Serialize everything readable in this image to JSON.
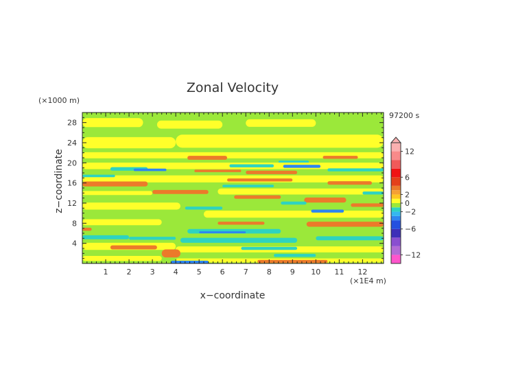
{
  "chart_data": {
    "type": "heatmap",
    "title": "Zonal Velocity",
    "xlabel": "x−coordinate",
    "ylabel": "z−coordinate",
    "x_unit": "(×1E4 m)",
    "y_unit": "(×1000 m)",
    "time_label": "97200 s",
    "xlim": [
      0,
      12.9
    ],
    "ylim": [
      0,
      30
    ],
    "x_ticks": [
      1,
      2,
      3,
      4,
      5,
      6,
      7,
      8,
      9,
      10,
      11,
      12
    ],
    "y_ticks": [
      4,
      8,
      12,
      16,
      20,
      24,
      28
    ],
    "colorbar": {
      "labels": [
        "12",
        "6",
        "2",
        "0",
        "−2",
        "−6",
        "−12"
      ],
      "levels": [
        {
          "from": -14,
          "to": -12,
          "color": "#ff55cc"
        },
        {
          "from": -12,
          "to": -10,
          "color": "#b36bd6"
        },
        {
          "from": -10,
          "to": -8,
          "color": "#8a4fd0"
        },
        {
          "from": -8,
          "to": -6,
          "color": "#3d2fb8"
        },
        {
          "from": -6,
          "to": -4,
          "color": "#2450e0"
        },
        {
          "from": -4,
          "to": -3,
          "color": "#2d86f0"
        },
        {
          "from": -3,
          "to": -2,
          "color": "#34b7f0"
        },
        {
          "from": -2,
          "to": -1,
          "color": "#2ed3c0"
        },
        {
          "from": -1,
          "to": 0,
          "color": "#9be83a"
        },
        {
          "from": 0,
          "to": 1,
          "color": "#ffff2a"
        },
        {
          "from": 1,
          "to": 2,
          "color": "#ffc520"
        },
        {
          "from": 2,
          "to": 3,
          "color": "#f5a033"
        },
        {
          "from": 3,
          "to": 4,
          "color": "#ec7a2a"
        },
        {
          "from": 4,
          "to": 6,
          "color": "#e4401a"
        },
        {
          "from": 6,
          "to": 8,
          "color": "#f01414"
        },
        {
          "from": 8,
          "to": 10,
          "color": "#f05a5a"
        },
        {
          "from": 10,
          "to": 12,
          "color": "#f88a8a"
        },
        {
          "from": 12,
          "to": 14,
          "color": "#fbb0b0"
        }
      ]
    },
    "background_color": "#9be83a",
    "features": [
      {
        "x0": 0.0,
        "x1": 2.6,
        "z": 28.0,
        "h": 1.8,
        "color": "#ffff2a"
      },
      {
        "x0": 3.2,
        "x1": 6.0,
        "z": 27.6,
        "h": 1.6,
        "color": "#ffff2a"
      },
      {
        "x0": 7.0,
        "x1": 10.0,
        "z": 27.9,
        "h": 1.5,
        "color": "#ffff2a"
      },
      {
        "x0": 0.0,
        "x1": 4.0,
        "z": 24.0,
        "h": 2.2,
        "color": "#ffff2a"
      },
      {
        "x0": 4.0,
        "x1": 12.9,
        "z": 24.3,
        "h": 2.6,
        "color": "#ffff2a"
      },
      {
        "x0": 0.0,
        "x1": 12.9,
        "z": 21.5,
        "h": 1.2,
        "color": "#ffff2a"
      },
      {
        "x0": 4.5,
        "x1": 6.2,
        "z": 21.0,
        "h": 0.8,
        "color": "#ec7a2a"
      },
      {
        "x0": 10.3,
        "x1": 11.8,
        "z": 21.1,
        "h": 0.6,
        "color": "#ec7a2a"
      },
      {
        "x0": 8.4,
        "x1": 9.7,
        "z": 20.2,
        "h": 0.5,
        "color": "#2ed3c0"
      },
      {
        "x0": 0.0,
        "x1": 12.9,
        "z": 19.4,
        "h": 1.3,
        "color": "#ffff2a"
      },
      {
        "x0": 1.2,
        "x1": 2.8,
        "z": 18.8,
        "h": 0.7,
        "color": "#2ed3c0"
      },
      {
        "x0": 2.2,
        "x1": 3.6,
        "z": 18.6,
        "h": 0.5,
        "color": "#2d86f0"
      },
      {
        "x0": 6.3,
        "x1": 8.2,
        "z": 19.4,
        "h": 0.6,
        "color": "#2ed3c0"
      },
      {
        "x0": 8.6,
        "x1": 10.2,
        "z": 19.3,
        "h": 0.6,
        "color": "#2d86f0"
      },
      {
        "x0": 4.8,
        "x1": 6.8,
        "z": 18.4,
        "h": 0.5,
        "color": "#ec7a2a"
      },
      {
        "x0": 7.0,
        "x1": 9.2,
        "z": 18.1,
        "h": 0.7,
        "color": "#ec7a2a"
      },
      {
        "x0": 10.5,
        "x1": 12.9,
        "z": 18.6,
        "h": 0.6,
        "color": "#2ed3c0"
      },
      {
        "x0": 0.0,
        "x1": 12.9,
        "z": 16.8,
        "h": 1.4,
        "color": "#ffff2a"
      },
      {
        "x0": 0.0,
        "x1": 1.4,
        "z": 17.4,
        "h": 0.5,
        "color": "#2ed3c0"
      },
      {
        "x0": 0.0,
        "x1": 2.8,
        "z": 15.8,
        "h": 1.0,
        "color": "#ec7a2a"
      },
      {
        "x0": 6.2,
        "x1": 9.0,
        "z": 16.6,
        "h": 0.6,
        "color": "#ec7a2a"
      },
      {
        "x0": 10.5,
        "x1": 12.4,
        "z": 16.0,
        "h": 0.7,
        "color": "#ec7a2a"
      },
      {
        "x0": 6.0,
        "x1": 8.2,
        "z": 15.4,
        "h": 0.5,
        "color": "#2ed3c0"
      },
      {
        "x0": 3.0,
        "x1": 5.4,
        "z": 14.2,
        "h": 0.8,
        "color": "#ec7a2a"
      },
      {
        "x0": 0.0,
        "x1": 3.0,
        "z": 14.0,
        "h": 0.8,
        "color": "#ffff2a"
      },
      {
        "x0": 5.8,
        "x1": 12.9,
        "z": 14.3,
        "h": 1.2,
        "color": "#ffff2a"
      },
      {
        "x0": 12.0,
        "x1": 12.9,
        "z": 14.0,
        "h": 0.6,
        "color": "#2ed3c0"
      },
      {
        "x0": 6.5,
        "x1": 8.5,
        "z": 13.2,
        "h": 0.7,
        "color": "#ec7a2a"
      },
      {
        "x0": 9.5,
        "x1": 11.3,
        "z": 12.6,
        "h": 1.0,
        "color": "#ec7a2a"
      },
      {
        "x0": 8.5,
        "x1": 9.6,
        "z": 12.0,
        "h": 0.6,
        "color": "#2ed3c0"
      },
      {
        "x0": 0.0,
        "x1": 4.2,
        "z": 11.4,
        "h": 1.4,
        "color": "#ffff2a"
      },
      {
        "x0": 4.4,
        "x1": 6.0,
        "z": 11.0,
        "h": 0.6,
        "color": "#2ed3c0"
      },
      {
        "x0": 5.2,
        "x1": 12.9,
        "z": 9.8,
        "h": 1.4,
        "color": "#ffff2a"
      },
      {
        "x0": 9.8,
        "x1": 11.2,
        "z": 10.4,
        "h": 0.6,
        "color": "#2d86f0"
      },
      {
        "x0": 11.5,
        "x1": 12.9,
        "z": 11.6,
        "h": 0.7,
        "color": "#ec7a2a"
      },
      {
        "x0": 0.0,
        "x1": 3.4,
        "z": 8.2,
        "h": 1.2,
        "color": "#ffff2a"
      },
      {
        "x0": 5.8,
        "x1": 7.8,
        "z": 8.0,
        "h": 0.6,
        "color": "#ec7a2a"
      },
      {
        "x0": 9.6,
        "x1": 12.9,
        "z": 7.8,
        "h": 1.0,
        "color": "#ec7a2a"
      },
      {
        "x0": 0.0,
        "x1": 0.4,
        "z": 6.8,
        "h": 0.6,
        "color": "#ec7a2a"
      },
      {
        "x0": 4.5,
        "x1": 8.5,
        "z": 6.4,
        "h": 0.9,
        "color": "#2ed3c0"
      },
      {
        "x0": 5.0,
        "x1": 7.0,
        "z": 6.2,
        "h": 0.4,
        "color": "#2d86f0"
      },
      {
        "x0": 0.0,
        "x1": 2.0,
        "z": 5.2,
        "h": 0.8,
        "color": "#2ed3c0"
      },
      {
        "x0": 2.0,
        "x1": 4.0,
        "z": 5.0,
        "h": 0.6,
        "color": "#2ed3c0"
      },
      {
        "x0": 4.2,
        "x1": 9.2,
        "z": 4.6,
        "h": 1.0,
        "color": "#2ed3c0"
      },
      {
        "x0": 10.0,
        "x1": 12.9,
        "z": 5.0,
        "h": 0.8,
        "color": "#2ed3c0"
      },
      {
        "x0": 0.0,
        "x1": 4.0,
        "z": 3.4,
        "h": 1.4,
        "color": "#ffff2a"
      },
      {
        "x0": 1.2,
        "x1": 3.2,
        "z": 3.2,
        "h": 0.8,
        "color": "#ec7a2a"
      },
      {
        "x0": 4.0,
        "x1": 12.9,
        "z": 2.8,
        "h": 1.2,
        "color": "#ffff2a"
      },
      {
        "x0": 6.8,
        "x1": 9.2,
        "z": 3.0,
        "h": 0.6,
        "color": "#2ed3c0"
      },
      {
        "x0": 3.4,
        "x1": 4.2,
        "z": 2.0,
        "h": 1.6,
        "color": "#ec7a2a"
      },
      {
        "x0": 8.2,
        "x1": 10.0,
        "z": 1.6,
        "h": 0.6,
        "color": "#2ed3c0"
      },
      {
        "x0": 0.0,
        "x1": 3.4,
        "z": 1.0,
        "h": 1.0,
        "color": "#ffff2a"
      },
      {
        "x0": 4.0,
        "x1": 12.9,
        "z": 0.6,
        "h": 0.8,
        "color": "#ffff2a"
      },
      {
        "x0": 7.5,
        "x1": 10.5,
        "z": 0.4,
        "h": 0.6,
        "color": "#ec7a2a"
      },
      {
        "x0": 3.8,
        "x1": 5.4,
        "z": 0.3,
        "h": 0.5,
        "color": "#2d86f0"
      }
    ]
  }
}
